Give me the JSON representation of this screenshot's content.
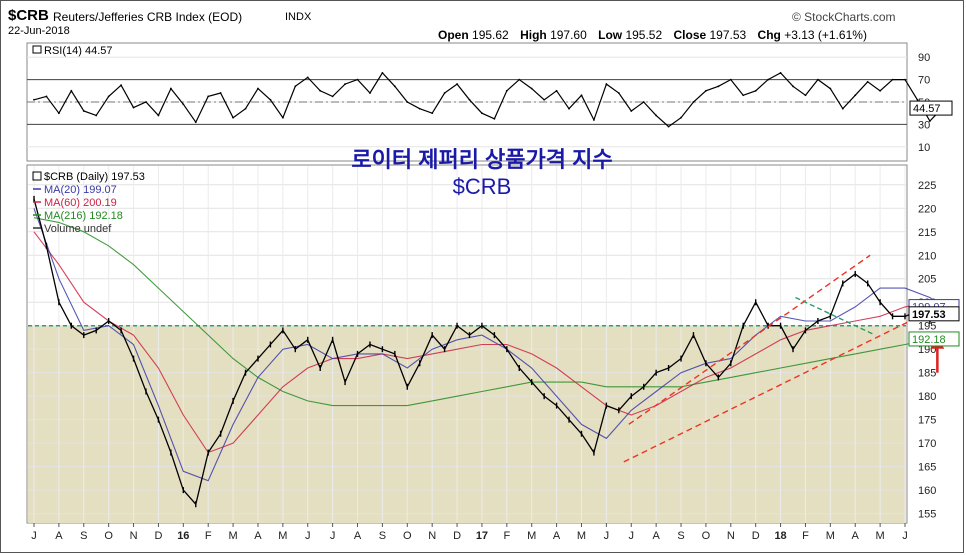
{
  "header": {
    "symbol": "$CRB",
    "name": "Reuters/Jefferies CRB Index (EOD)",
    "exchange": "INDX",
    "date": "22-Jun-2018",
    "watermark": "© StockCharts.com",
    "ohlc": [
      {
        "label": "Open",
        "value": "195.62"
      },
      {
        "label": "High",
        "value": "197.60"
      },
      {
        "label": "Low",
        "value": "195.52"
      },
      {
        "label": "Close",
        "value": "197.53"
      },
      {
        "label": "Chg",
        "value": "+3.13 (+1.61%)"
      }
    ]
  },
  "korean_title": "로이터 제퍼리 상품가격 지수",
  "korean_subtitle": "$CRB",
  "chart_data": [
    {
      "type": "line",
      "name": "rsi_panel",
      "legend": "RSI(14) 44.57",
      "ylim": [
        0,
        100
      ],
      "y_ticks": [
        "90",
        "70",
        "50",
        "30",
        "10"
      ],
      "reference_lines": [
        70,
        30
      ],
      "last_value_label": "44.57",
      "series": [
        {
          "name": "RSI(14)",
          "color": "#000000",
          "x": [
            0,
            0.5,
            1,
            1.5,
            2,
            2.5,
            3,
            3.5,
            4,
            4.5,
            5,
            5.5,
            6,
            6.5,
            7,
            7.5,
            8,
            8.5,
            9,
            9.5,
            10,
            10.5,
            11,
            11.5,
            12,
            12.5,
            13,
            13.5,
            14,
            14.5,
            15,
            15.5,
            16,
            16.5,
            17,
            17.5,
            18,
            18.5,
            19,
            19.5,
            20,
            20.5,
            21,
            21.5,
            22,
            22.5,
            23,
            23.5,
            24,
            24.5,
            25,
            25.5,
            26,
            26.5,
            27,
            27.5,
            28,
            28.5,
            29,
            29.5,
            30,
            30.5,
            31,
            31.5,
            32,
            32.5,
            33,
            33.5,
            34,
            34.5,
            35,
            35.5,
            36,
            36.5
          ],
          "values": [
            52,
            55,
            40,
            60,
            42,
            38,
            55,
            65,
            45,
            50,
            38,
            62,
            48,
            32,
            55,
            58,
            36,
            44,
            62,
            52,
            36,
            64,
            72,
            60,
            55,
            66,
            70,
            58,
            76,
            64,
            50,
            44,
            40,
            58,
            66,
            52,
            40,
            35,
            60,
            70,
            62,
            52,
            60,
            44,
            56,
            34,
            66,
            58,
            42,
            50,
            38,
            28,
            36,
            50,
            60,
            64,
            70,
            56,
            60,
            70,
            76,
            64,
            56,
            70,
            62,
            44,
            56,
            68,
            60,
            70,
            70,
            52,
            33,
            44.57
          ]
        }
      ]
    },
    {
      "type": "line",
      "name": "price_panel",
      "legend": [
        {
          "label": "$CRB (Daily) 197.53",
          "color": "#000000"
        },
        {
          "label": "MA(20) 199.07",
          "color": "#3a3aa8"
        },
        {
          "label": "MA(60) 200.19",
          "color": "#cc2244"
        },
        {
          "label": "MA(216) 192.18",
          "color": "#228b22"
        },
        {
          "label": "Volume undef",
          "color": "#333333"
        }
      ],
      "ylim": [
        153,
        229
      ],
      "y_ticks": [
        "225",
        "220",
        "215",
        "210",
        "205",
        "200",
        "195",
        "190",
        "185",
        "180",
        "175",
        "170",
        "165",
        "160",
        "155"
      ],
      "x_ticks": [
        "J",
        "A",
        "S",
        "O",
        "N",
        "D",
        "16",
        "F",
        "M",
        "A",
        "M",
        "J",
        "J",
        "A",
        "S",
        "O",
        "N",
        "D",
        "17",
        "F",
        "M",
        "A",
        "M",
        "J",
        "J",
        "A",
        "S",
        "O",
        "N",
        "D",
        "18",
        "F",
        "M",
        "A",
        "M",
        "J"
      ],
      "x_tick_bold": [
        "16",
        "17",
        "18"
      ],
      "support_line": 195,
      "price_labels": [
        {
          "value": "199.07",
          "color": "#3a3aa8"
        },
        {
          "value": "197.53",
          "color": "#000000"
        },
        {
          "value": "192.18",
          "color": "#228b22"
        }
      ],
      "series": [
        {
          "name": "$CRB",
          "color": "#000000",
          "x": [
            0,
            0.5,
            1,
            1.5,
            2,
            2.5,
            3,
            3.5,
            4,
            4.5,
            5,
            5.5,
            6,
            6.5,
            7,
            7.5,
            8,
            8.5,
            9,
            9.5,
            10,
            10.5,
            11,
            11.5,
            12,
            12.5,
            13,
            13.5,
            14,
            14.5,
            15,
            15.5,
            16,
            16.5,
            17,
            17.5,
            18,
            18.5,
            19,
            19.5,
            20,
            20.5,
            21,
            21.5,
            22,
            22.5,
            23,
            23.5,
            24,
            24.5,
            25,
            25.5,
            26,
            26.5,
            27,
            27.5,
            28,
            28.5,
            29,
            29.5,
            30,
            30.5,
            31,
            31.5,
            32,
            32.5,
            33,
            33.5,
            34,
            34.5,
            35,
            35.5,
            36,
            36.5
          ],
          "values": [
            222,
            212,
            200,
            195,
            193,
            194,
            196,
            194,
            188,
            181,
            175,
            168,
            160,
            157,
            168,
            172,
            179,
            185,
            188,
            191,
            194,
            190,
            192,
            186,
            192,
            183,
            189,
            191,
            190,
            189,
            182,
            187,
            193,
            190,
            195,
            193,
            195,
            193,
            190,
            186,
            183,
            180,
            178,
            175,
            172,
            168,
            178,
            177,
            180,
            182,
            185,
            186,
            188,
            193,
            187,
            184,
            187,
            195,
            200,
            195,
            195,
            190,
            194,
            196,
            197,
            204,
            206,
            204,
            200,
            197,
            197,
            198,
            196,
            197.53
          ]
        },
        {
          "name": "MA(20)",
          "color": "#3a3aa8",
          "x": [
            0,
            1,
            2,
            3,
            4,
            5,
            6,
            7,
            8,
            9,
            10,
            11,
            12,
            13,
            14,
            15,
            16,
            17,
            18,
            19,
            20,
            21,
            22,
            23,
            24,
            25,
            26,
            27,
            28,
            29,
            30,
            31,
            32,
            33,
            34,
            35,
            36,
            36.5
          ],
          "values": [
            220,
            205,
            194,
            195,
            191,
            178,
            164,
            162,
            174,
            184,
            190,
            191,
            188,
            189,
            189,
            186,
            190,
            192,
            193,
            190,
            186,
            180,
            174,
            171,
            177,
            181,
            185,
            187,
            188,
            193,
            197,
            196,
            196,
            199,
            203,
            203,
            201,
            199.07
          ]
        },
        {
          "name": "MA(60)",
          "color": "#cc2244",
          "x": [
            0,
            1,
            2,
            3,
            4,
            5,
            6,
            7,
            8,
            9,
            10,
            11,
            12,
            13,
            14,
            15,
            16,
            17,
            18,
            19,
            20,
            21,
            22,
            23,
            24,
            25,
            26,
            27,
            28,
            29,
            30,
            31,
            32,
            33,
            34,
            35,
            36,
            36.5
          ],
          "values": [
            215,
            208,
            200,
            196,
            193,
            186,
            176,
            168,
            170,
            176,
            182,
            186,
            188,
            188,
            189,
            188,
            189,
            190,
            191,
            191,
            189,
            186,
            182,
            178,
            176,
            178,
            181,
            184,
            186,
            189,
            192,
            194,
            195,
            196,
            197,
            199,
            200,
            200.19
          ]
        },
        {
          "name": "MA(216)",
          "color": "#228b22",
          "x": [
            0,
            1,
            2,
            3,
            4,
            5,
            6,
            7,
            8,
            9,
            10,
            11,
            12,
            13,
            14,
            15,
            16,
            17,
            18,
            19,
            20,
            21,
            22,
            23,
            24,
            25,
            26,
            27,
            28,
            29,
            30,
            31,
            32,
            33,
            34,
            35,
            36,
            36.5
          ],
          "values": [
            218,
            217,
            215,
            212,
            208,
            203,
            198,
            193,
            188,
            184,
            181,
            179,
            178,
            178,
            178,
            178,
            179,
            180,
            181,
            182,
            183,
            183,
            183,
            182,
            182,
            182,
            182,
            183,
            184,
            185,
            186,
            187,
            188,
            189,
            190,
            191,
            192,
            192.18
          ]
        }
      ],
      "annotations": [
        {
          "type": "channel",
          "color": "#ee3322",
          "lines": [
            {
              "x": [
                23.9,
                33.6
              ],
              "y": [
                174,
                210
              ]
            },
            {
              "x": [
                23.7,
                35.2
              ],
              "y": [
                166,
                196
              ]
            }
          ]
        },
        {
          "type": "trendline",
          "color": "#2a9d6a",
          "x": [
            30.6,
            33.8
          ],
          "y": [
            201,
            193
          ]
        },
        {
          "type": "arrow",
          "color": "#e02020",
          "x": 36.3,
          "y_from": 185,
          "y_to": 192
        }
      ]
    }
  ]
}
